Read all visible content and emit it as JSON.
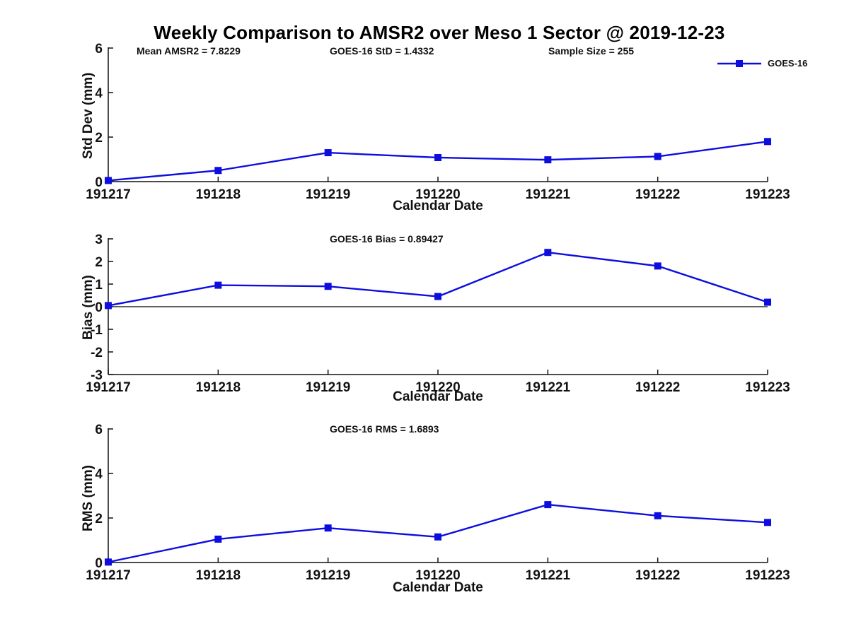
{
  "page_title": "Weekly Comparison to AMSR2 over Meso 1 Sector @ 2019-12-23",
  "legend": {
    "label": "GOES-16"
  },
  "colors": {
    "line": "#0d0de0",
    "axis": "#111111",
    "zero_line": "#000000",
    "background": "#ffffff",
    "text": "#000000"
  },
  "chart_data": [
    {
      "type": "line",
      "panel": "std-dev",
      "annotations": [
        "Mean AMSR2 = 7.8229",
        "GOES-16 StD = 1.4332",
        "Sample Size = 255"
      ],
      "ylabel": "Std Dev (mm)",
      "xlabel": "Calendar Date",
      "categories": [
        "191217",
        "191218",
        "191219",
        "191220",
        "191221",
        "191222",
        "191223"
      ],
      "series": [
        {
          "name": "GOES-16",
          "values": [
            0.05,
            0.5,
            1.3,
            1.08,
            0.98,
            1.13,
            1.8
          ]
        }
      ],
      "ylim": [
        0,
        6
      ],
      "yticks": [
        0,
        2,
        4,
        6
      ],
      "grid": false,
      "legend_position": "upper-right",
      "marker": "square",
      "zero_line": false
    },
    {
      "type": "line",
      "panel": "bias",
      "annotations": [
        "GOES-16 Bias  = 0.89427"
      ],
      "ylabel": "Bias (mm)",
      "xlabel": "Calendar Date",
      "categories": [
        "191217",
        "191218",
        "191219",
        "191220",
        "191221",
        "191222",
        "191223"
      ],
      "series": [
        {
          "name": "GOES-16",
          "values": [
            0.05,
            0.95,
            0.9,
            0.45,
            2.4,
            1.8,
            0.2
          ]
        }
      ],
      "ylim": [
        -3,
        3
      ],
      "yticks": [
        -3,
        -2,
        -1,
        0,
        1,
        2,
        3
      ],
      "grid": false,
      "marker": "square",
      "zero_line": true
    },
    {
      "type": "line",
      "panel": "rms",
      "annotations": [
        "GOES-16 RMS = 1.6893"
      ],
      "ylabel": "RMS (mm)",
      "xlabel": "Calendar Date",
      "categories": [
        "191217",
        "191218",
        "191219",
        "191220",
        "191221",
        "191222",
        "191223"
      ],
      "series": [
        {
          "name": "GOES-16",
          "values": [
            0.02,
            1.05,
            1.55,
            1.15,
            2.6,
            2.1,
            1.8
          ]
        }
      ],
      "ylim": [
        0,
        6
      ],
      "yticks": [
        0,
        2,
        4,
        6
      ],
      "grid": false,
      "marker": "square",
      "zero_line": false
    }
  ]
}
